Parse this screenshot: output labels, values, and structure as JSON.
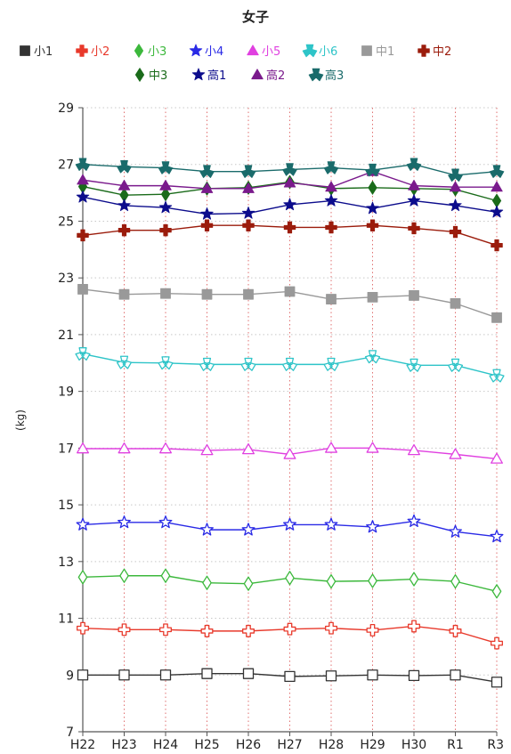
{
  "chart_data": {
    "type": "line",
    "title": "女子",
    "xlabel": "",
    "ylabel": "(kg)",
    "ylim": [
      7,
      29
    ],
    "yticks": [
      7,
      9,
      11,
      13,
      15,
      17,
      19,
      21,
      23,
      25,
      27,
      29
    ],
    "grid": "dotted",
    "legend_position": "top",
    "categories": [
      "H22",
      "H23",
      "H24",
      "H25",
      "H26",
      "H27",
      "H28",
      "H29",
      "H30",
      "R1",
      "R3"
    ],
    "series": [
      {
        "name": "小1",
        "color": "#333333",
        "marker": "square",
        "filled": false,
        "values": [
          9.0,
          9.0,
          9.0,
          9.05,
          9.05,
          8.95,
          8.97,
          9.0,
          8.98,
          9.0,
          8.75
        ]
      },
      {
        "name": "小2",
        "color": "#e8392b",
        "marker": "cross",
        "filled": false,
        "values": [
          10.65,
          10.6,
          10.6,
          10.55,
          10.55,
          10.62,
          10.65,
          10.58,
          10.72,
          10.55,
          10.12
        ]
      },
      {
        "name": "小3",
        "color": "#3cb83c",
        "marker": "diamond",
        "filled": false,
        "values": [
          12.45,
          12.5,
          12.5,
          12.25,
          12.22,
          12.42,
          12.3,
          12.32,
          12.38,
          12.3,
          11.95
        ]
      },
      {
        "name": "小4",
        "color": "#2a2ae6",
        "marker": "star",
        "filled": false,
        "values": [
          14.3,
          14.38,
          14.38,
          14.12,
          14.12,
          14.3,
          14.3,
          14.22,
          14.42,
          14.05,
          13.88
        ]
      },
      {
        "name": "小5",
        "color": "#e040e0",
        "marker": "triangle",
        "filled": false,
        "values": [
          16.98,
          16.98,
          16.98,
          16.92,
          16.95,
          16.78,
          17.0,
          17.0,
          16.92,
          16.78,
          16.62
        ]
      },
      {
        "name": "小6",
        "color": "#2ec4c8",
        "marker": "tri-spoke",
        "filled": false,
        "values": [
          20.32,
          20.02,
          20.0,
          19.95,
          19.95,
          19.95,
          19.95,
          20.22,
          19.92,
          19.92,
          19.55
        ]
      },
      {
        "name": "中1",
        "color": "#999999",
        "marker": "square",
        "filled": true,
        "values": [
          22.6,
          22.42,
          22.45,
          22.42,
          22.42,
          22.52,
          22.25,
          22.32,
          22.38,
          22.1,
          21.6
        ]
      },
      {
        "name": "中2",
        "color": "#9b1c0c",
        "marker": "cross",
        "filled": true,
        "values": [
          24.5,
          24.68,
          24.68,
          24.85,
          24.85,
          24.78,
          24.78,
          24.85,
          24.75,
          24.62,
          24.15
        ]
      },
      {
        "name": "中3",
        "color": "#1a6b1a",
        "marker": "diamond",
        "filled": true,
        "values": [
          26.22,
          25.92,
          25.95,
          26.15,
          26.18,
          26.38,
          26.15,
          26.18,
          26.15,
          26.12,
          25.72
        ]
      },
      {
        "name": "高1",
        "color": "#0c0c8c",
        "marker": "star",
        "filled": true,
        "values": [
          25.85,
          25.55,
          25.48,
          25.25,
          25.28,
          25.58,
          25.72,
          25.45,
          25.72,
          25.55,
          25.32
        ]
      },
      {
        "name": "高2",
        "color": "#7a1a8c",
        "marker": "triangle",
        "filled": true,
        "values": [
          26.45,
          26.25,
          26.25,
          26.15,
          26.15,
          26.35,
          26.2,
          26.75,
          26.25,
          26.2,
          26.2
        ]
      },
      {
        "name": "高3",
        "color": "#1a6b6b",
        "marker": "tri-spoke",
        "filled": true,
        "values": [
          27.0,
          26.92,
          26.88,
          26.75,
          26.75,
          26.82,
          26.88,
          26.8,
          27.0,
          26.62,
          26.75
        ]
      }
    ]
  }
}
